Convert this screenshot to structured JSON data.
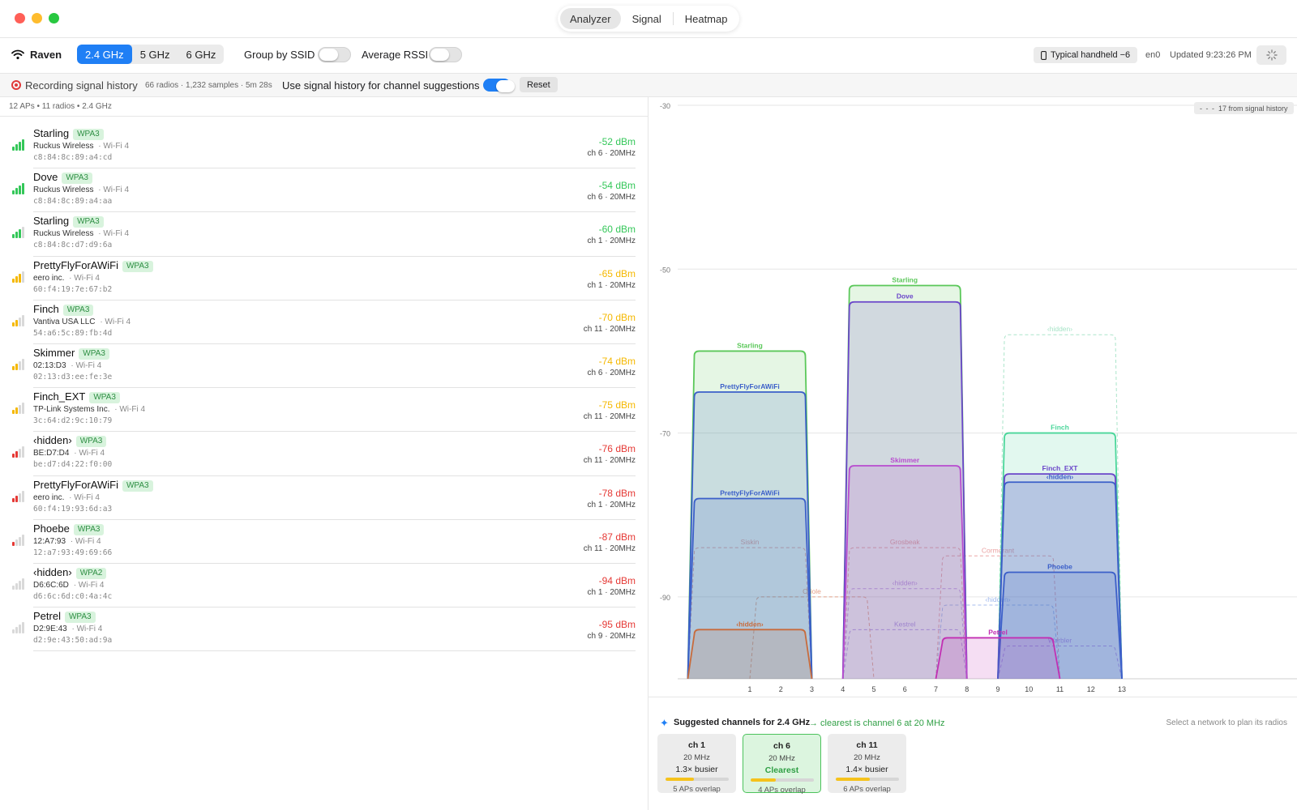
{
  "window": {
    "tabs": [
      {
        "label": "Analyzer",
        "active": true
      },
      {
        "label": "Signal",
        "active": false
      },
      {
        "label": "Heatmap",
        "active": false
      }
    ]
  },
  "toolbar": {
    "interface_name": "Raven",
    "bands": [
      {
        "label": "2.4 GHz",
        "active": true
      },
      {
        "label": "5 GHz",
        "active": false
      },
      {
        "label": "6 GHz",
        "active": false
      }
    ],
    "group_by_ssid_label": "Group by SSID",
    "group_by_ssid_on": false,
    "average_rssi_label": "Average RSSI",
    "average_rssi_on": false,
    "profile_label": "Typical handheld −6",
    "interface_id": "en0",
    "updated": "Updated 9:23:26 PM"
  },
  "recording": {
    "label": "Recording signal history",
    "stats": "66 radios · 1,232 samples · 5m 28s",
    "history_label": "Use signal history for channel suggestions",
    "history_on": true,
    "reset_label": "Reset"
  },
  "list": {
    "summary": "12 APs • 11 radios • 2.4 GHz",
    "rows": [
      {
        "ssid": "Starling",
        "security": "WPA3",
        "vendor": "Ruckus Wireless",
        "standard": "· Wi-Fi 4",
        "mac": "c8:84:8c:89:a4:cd",
        "rssi": "-52 dBm",
        "channel": "ch 6 · 20MHz",
        "bars": 4,
        "color": "#34c759"
      },
      {
        "ssid": "Dove",
        "security": "WPA3",
        "vendor": "Ruckus Wireless",
        "standard": "· Wi-Fi 4",
        "mac": "c8:84:8c:89:a4:aa",
        "rssi": "-54 dBm",
        "channel": "ch 6 · 20MHz",
        "bars": 4,
        "color": "#34c759"
      },
      {
        "ssid": "Starling",
        "security": "WPA3",
        "vendor": "Ruckus Wireless",
        "standard": "· Wi-Fi 4",
        "mac": "c8:84:8c:d7:d9:6a",
        "rssi": "-60 dBm",
        "channel": "ch 1 · 20MHz",
        "bars": 3,
        "color": "#34c759"
      },
      {
        "ssid": "PrettyFlyForAWiFi",
        "security": "WPA3",
        "vendor": "eero inc.",
        "standard": "· Wi-Fi 4",
        "mac": "60:f4:19:7e:67:b2",
        "rssi": "-65 dBm",
        "channel": "ch 1 · 20MHz",
        "bars": 3,
        "color": "#f5b800"
      },
      {
        "ssid": "Finch",
        "security": "WPA3",
        "vendor": "Vantiva USA LLC",
        "standard": "· Wi-Fi 4",
        "mac": "54:a6:5c:89:fb:4d",
        "rssi": "-70 dBm",
        "channel": "ch 11 · 20MHz",
        "bars": 2,
        "color": "#f5b800"
      },
      {
        "ssid": "Skimmer",
        "security": "WPA3",
        "vendor": "02:13:D3",
        "standard": "· Wi-Fi 4",
        "mac": "02:13:d3:ee:fe:3e",
        "rssi": "-74 dBm",
        "channel": "ch 6 · 20MHz",
        "bars": 2,
        "color": "#f5b800"
      },
      {
        "ssid": "Finch_EXT",
        "security": "WPA3",
        "vendor": "TP-Link Systems Inc.",
        "standard": "· Wi-Fi 4",
        "mac": "3c:64:d2:9c:10:79",
        "rssi": "-75 dBm",
        "channel": "ch 11 · 20MHz",
        "bars": 2,
        "color": "#f5b800"
      },
      {
        "ssid": "‹hidden›",
        "security": "WPA3",
        "vendor": "BE:D7:D4",
        "standard": "· Wi-Fi 4",
        "mac": "be:d7:d4:22:f0:00",
        "rssi": "-76 dBm",
        "channel": "ch 11 · 20MHz",
        "bars": 2,
        "color": "#e53935"
      },
      {
        "ssid": "PrettyFlyForAWiFi",
        "security": "WPA3",
        "vendor": "eero inc.",
        "standard": "· Wi-Fi 4",
        "mac": "60:f4:19:93:6d:a3",
        "rssi": "-78 dBm",
        "channel": "ch 1 · 20MHz",
        "bars": 2,
        "color": "#e53935"
      },
      {
        "ssid": "Phoebe",
        "security": "WPA3",
        "vendor": "12:A7:93",
        "standard": "· Wi-Fi 4",
        "mac": "12:a7:93:49:69:66",
        "rssi": "-87 dBm",
        "channel": "ch 11 · 20MHz",
        "bars": 1,
        "color": "#e53935"
      },
      {
        "ssid": "‹hidden›",
        "security": "WPA2",
        "vendor": "D6:6C:6D",
        "standard": "· Wi-Fi 4",
        "mac": "d6:6c:6d:c0:4a:4c",
        "rssi": "-94 dBm",
        "channel": "ch 1 · 20MHz",
        "bars": 0,
        "color": "#e53935"
      },
      {
        "ssid": "Petrel",
        "security": "WPA3",
        "vendor": "D2:9E:43",
        "standard": "· Wi-Fi 4",
        "mac": "d2:9e:43:50:ad:9a",
        "rssi": "-95 dBm",
        "channel": "ch 9 · 20MHz",
        "bars": 0,
        "color": "#e53935"
      }
    ]
  },
  "chart_data": {
    "type": "area",
    "y_ticks": [
      -30,
      -50,
      -70,
      -90
    ],
    "x_ticks": [
      1,
      2,
      3,
      4,
      5,
      6,
      7,
      8,
      9,
      10,
      11,
      12,
      13
    ],
    "ylim": [
      -100,
      -30
    ],
    "history_badge": "17 from signal history",
    "series": [
      {
        "name": "Starling",
        "channel": 1,
        "dbm": -60,
        "color": "#5bc85a",
        "style": "solid"
      },
      {
        "name": "PrettyFlyForAWiFi",
        "channel": 1,
        "dbm": -65,
        "color": "#3b5fc9",
        "style": "solid"
      },
      {
        "name": "PrettyFlyForAWiFi",
        "channel": 1,
        "dbm": -78,
        "color": "#3b5fc9",
        "style": "solid"
      },
      {
        "name": "‹hidden›",
        "channel": 1,
        "dbm": -94,
        "color": "#c86b3c",
        "style": "solid"
      },
      {
        "name": "Starling",
        "channel": 6,
        "dbm": -52,
        "color": "#5bc85a",
        "style": "solid"
      },
      {
        "name": "Dove",
        "channel": 6,
        "dbm": -54,
        "color": "#6a45c9",
        "style": "solid"
      },
      {
        "name": "Skimmer",
        "channel": 6,
        "dbm": -74,
        "color": "#b84ccf",
        "style": "solid"
      },
      {
        "name": "Finch",
        "channel": 11,
        "dbm": -70,
        "color": "#4ad69a",
        "style": "solid"
      },
      {
        "name": "Finch_EXT",
        "channel": 11,
        "dbm": -75,
        "color": "#6a45c9",
        "style": "solid"
      },
      {
        "name": "‹hidden›",
        "channel": 11,
        "dbm": -76,
        "color": "#3b5fc9",
        "style": "solid"
      },
      {
        "name": "Phoebe",
        "channel": 11,
        "dbm": -87,
        "color": "#3b5fc9",
        "style": "solid"
      },
      {
        "name": "Petrel",
        "channel": 9,
        "dbm": -95,
        "color": "#c22fb3",
        "style": "solid"
      },
      {
        "name": "‹hidden›",
        "channel": 11,
        "dbm": -58,
        "color": "#8fdcb8",
        "style": "dashed"
      },
      {
        "name": "Siskin",
        "channel": 1,
        "dbm": -84,
        "color": "#e58a8a",
        "style": "dashed"
      },
      {
        "name": "Grosbeak",
        "channel": 6,
        "dbm": -84,
        "color": "#e58a8a",
        "style": "dashed"
      },
      {
        "name": "Cormorant",
        "channel": 9,
        "dbm": -85,
        "color": "#e58a8a",
        "style": "dashed"
      },
      {
        "name": "Oriole",
        "channel": 3,
        "dbm": -90,
        "color": "#e08a6a",
        "style": "dashed"
      },
      {
        "name": "‹hidden›",
        "channel": 6,
        "dbm": -89,
        "color": "#b07ae0",
        "style": "dashed"
      },
      {
        "name": "‹hidden›",
        "channel": 9,
        "dbm": -91,
        "color": "#8aa8e8",
        "style": "dashed"
      },
      {
        "name": "Kestrel",
        "channel": 6,
        "dbm": -94,
        "color": "#9c7ae0",
        "style": "dashed"
      },
      {
        "name": "Warbler",
        "channel": 11,
        "dbm": -96,
        "color": "#b07ae0",
        "style": "dashed"
      }
    ]
  },
  "suggestions": {
    "title": "Suggested channels for 2.4 GHz",
    "subtitle": "→ clearest is channel 6 at 20 MHz",
    "hint": "Select a network to plan its radios",
    "cards": [
      {
        "channel": "ch 1",
        "width": "20 MHz",
        "busy": "1.3× busier",
        "fill": 0.45,
        "overlap": "5 APs overlap",
        "best": false
      },
      {
        "channel": "ch 6",
        "width": "20 MHz",
        "busy": "Clearest",
        "fill": 0.4,
        "overlap": "4 APs overlap",
        "best": true
      },
      {
        "channel": "ch 11",
        "width": "20 MHz",
        "busy": "1.4× busier",
        "fill": 0.55,
        "overlap": "6 APs overlap",
        "best": false
      }
    ]
  },
  "colors": {
    "accent": "#1f7ff5",
    "good": "#34c759",
    "warn": "#f5b800",
    "bad": "#e53935"
  }
}
